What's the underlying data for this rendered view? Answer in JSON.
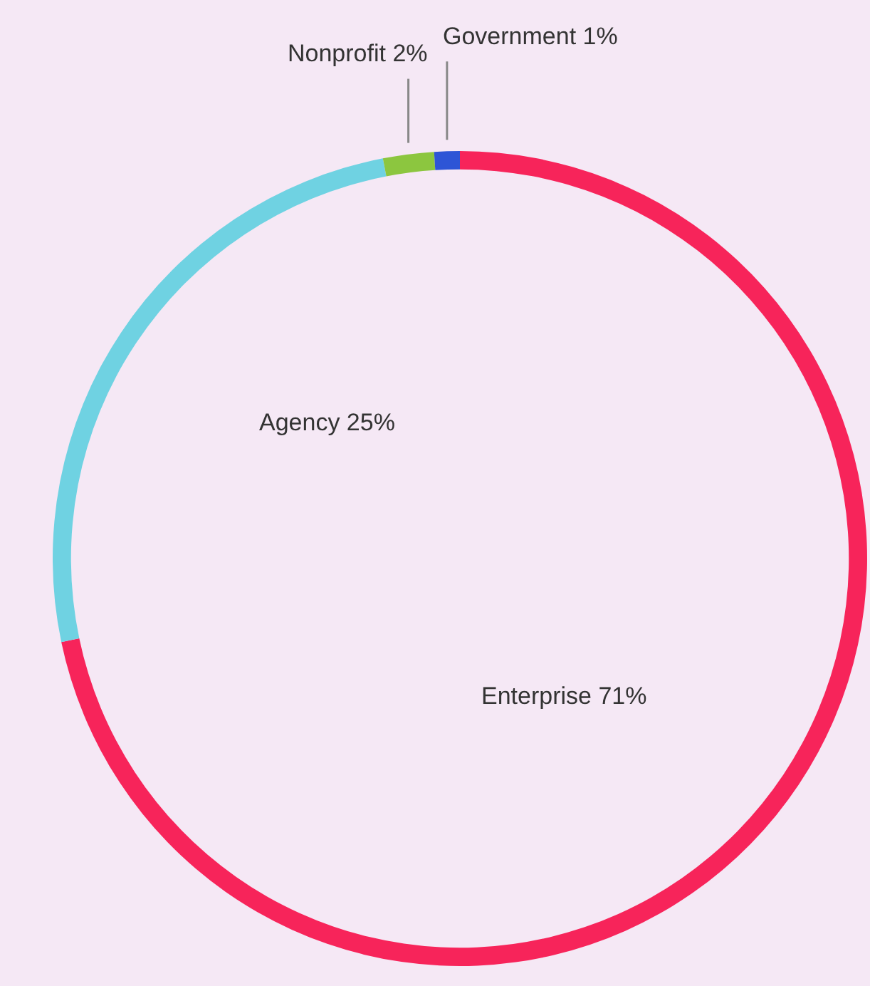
{
  "chart_data": {
    "type": "donut",
    "categories": [
      "Enterprise",
      "Agency",
      "Nonprofit",
      "Government"
    ],
    "values": [
      71,
      25,
      2,
      1
    ],
    "colors": [
      "#f7245a",
      "#6fd2e2",
      "#8cc63f",
      "#2d55d6"
    ],
    "value_labels": [
      "71%",
      "25%",
      "2%",
      "1%"
    ]
  }
}
